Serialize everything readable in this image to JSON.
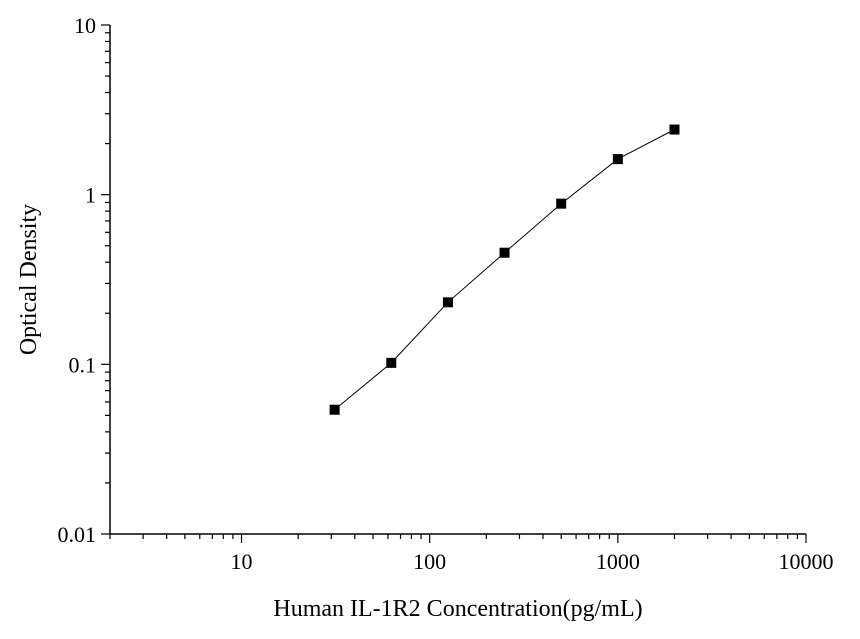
{
  "chart_data": {
    "type": "scatter",
    "title": "",
    "xlabel": "Human IL-1R2 Concentration(pg/mL)",
    "ylabel": "Optical Density",
    "x_scale": "log",
    "y_scale": "log",
    "xlim": [
      2,
      10000
    ],
    "ylim": [
      0.01,
      10
    ],
    "x_ticks": [
      10,
      100,
      1000,
      10000
    ],
    "x_tick_labels": [
      "10",
      "100",
      "1000",
      "10000"
    ],
    "y_ticks": [
      0.01,
      0.1,
      1,
      10
    ],
    "y_tick_labels": [
      "0.01",
      "0.1",
      "1",
      "10"
    ],
    "grid": false,
    "legend": "none",
    "series": [
      {
        "x": [
          31.25,
          62.5,
          125,
          250,
          500,
          1000,
          2000
        ],
        "y": [
          0.054,
          0.102,
          0.232,
          0.455,
          0.885,
          1.62,
          2.42
        ],
        "marker": "square",
        "color": "#000000",
        "fit_line": true
      }
    ]
  }
}
